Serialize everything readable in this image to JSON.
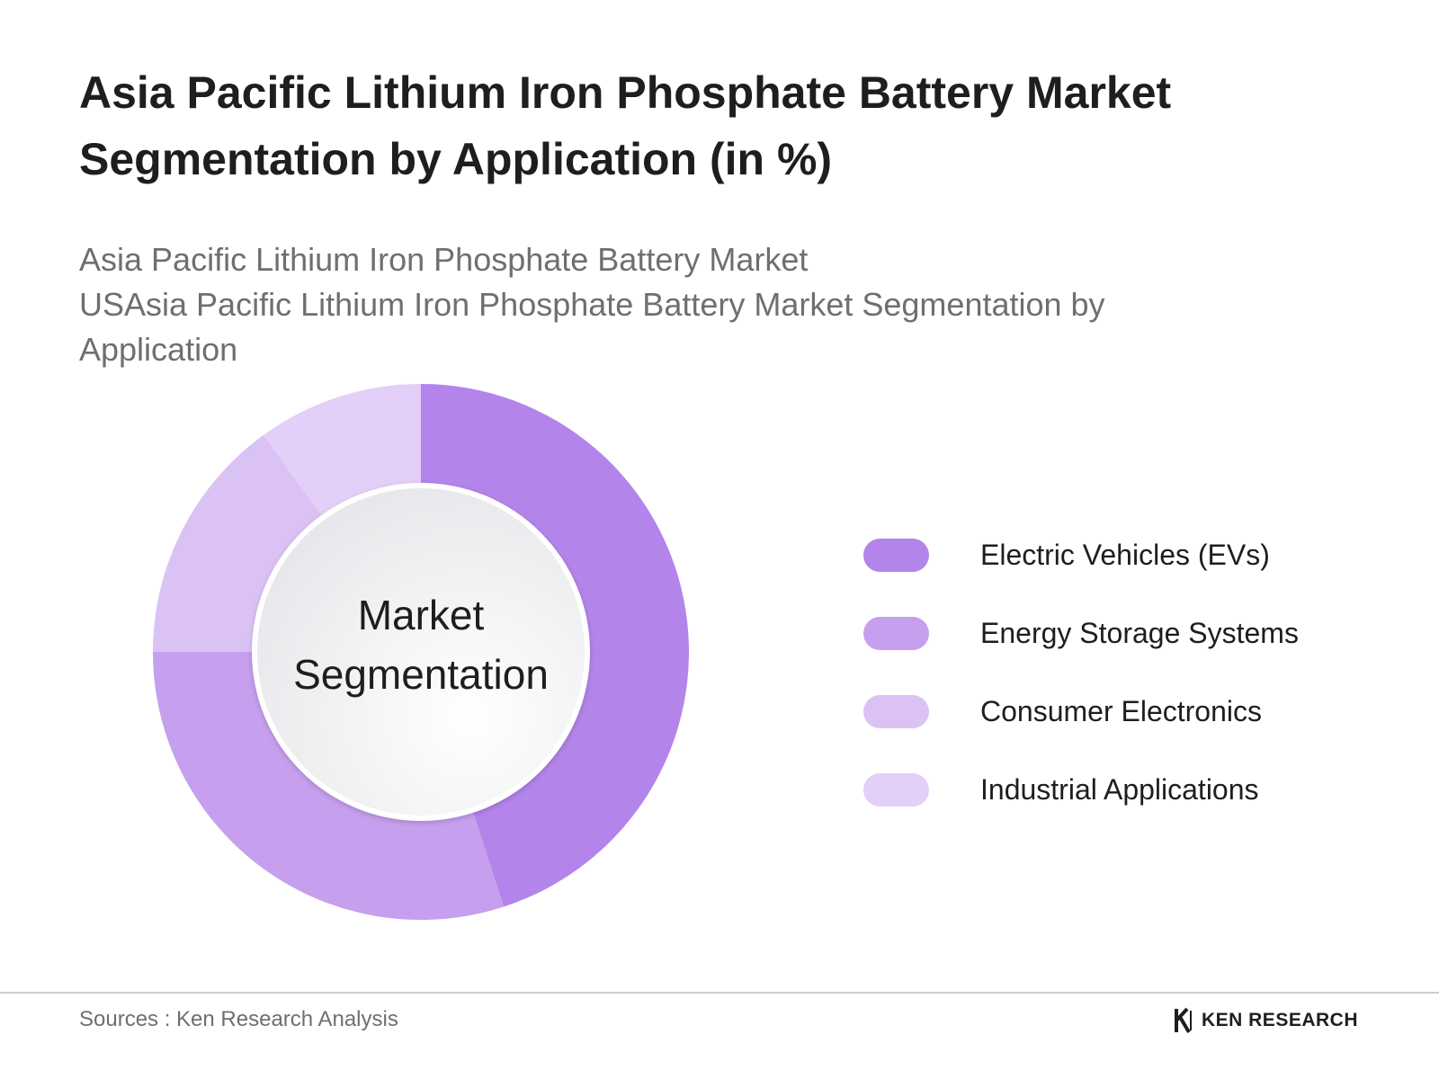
{
  "title": "Asia Pacific Lithium Iron Phosphate Battery Market Segmentation by Application (in %)",
  "subtitle_lines": [
    "Asia Pacific Lithium Iron Phosphate Battery Market",
    "USAsia Pacific Lithium Iron Phosphate Battery Market Segmentation by Application"
  ],
  "chart_data": {
    "type": "pie",
    "variant": "donut",
    "center_label": [
      "Market",
      "Segmentation"
    ],
    "categories": [
      "Electric Vehicles (EVs)",
      "Energy Storage Systems",
      "Consumer Electronics",
      "Industrial Applications"
    ],
    "values": [
      45,
      30,
      15,
      10
    ],
    "unit": "%",
    "colors": [
      "#b384ea",
      "#c69fee",
      "#dbc2f5",
      "#e3cff7"
    ],
    "legend_position": "right"
  },
  "footer": {
    "source": "Sources : Ken Research Analysis",
    "brand": "KEN RESEARCH"
  }
}
